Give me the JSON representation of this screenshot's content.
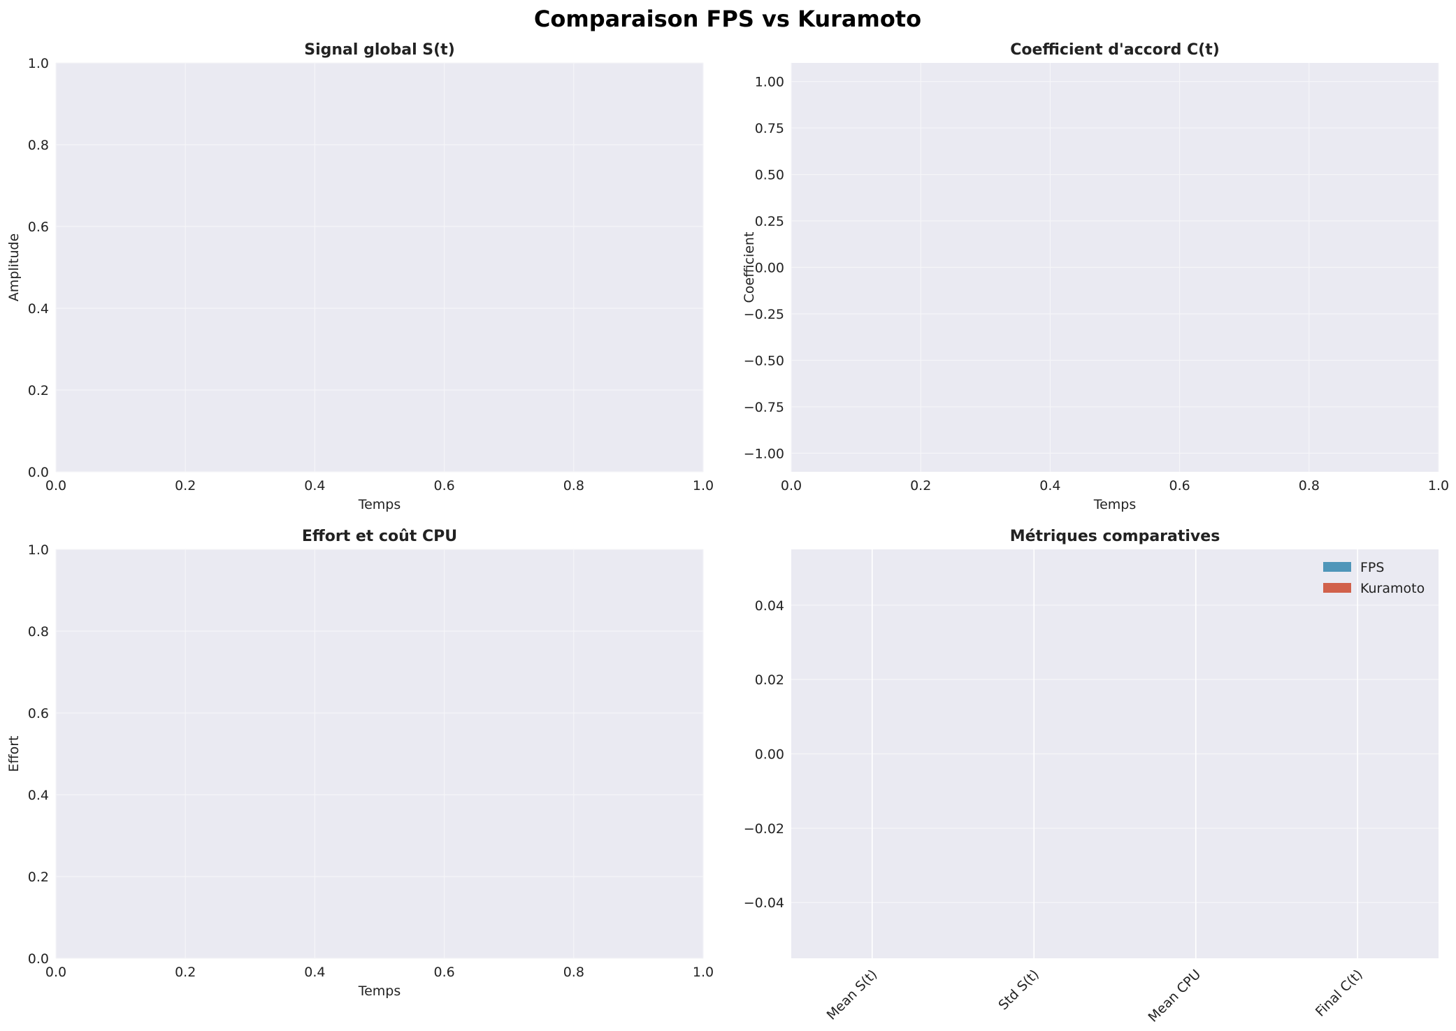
{
  "figure": {
    "title": "Comparaison FPS vs Kuramoto"
  },
  "colors": {
    "panel_bg": "#eaeaf2",
    "grid": "#f5f5f8",
    "grid_white": "#ffffff",
    "fps": "#4f96b9",
    "kuramoto": "#d1614b",
    "text": "#222222"
  },
  "chart_data": [
    {
      "type": "line",
      "title": "Signal global S(t)",
      "xlabel": "Temps",
      "ylabel": "Amplitude",
      "xlim": [
        0,
        1
      ],
      "ylim": [
        0,
        1
      ],
      "xticks": [
        "0.0",
        "0.2",
        "0.4",
        "0.6",
        "0.8",
        "1.0"
      ],
      "yticks": [
        "0.0",
        "0.2",
        "0.4",
        "0.6",
        "0.8",
        "1.0"
      ],
      "series": [],
      "grid": true
    },
    {
      "type": "line",
      "title": "Coefficient d'accord C(t)",
      "xlabel": "Temps",
      "ylabel": "Coefficient",
      "xlim": [
        0,
        1
      ],
      "ylim": [
        -1.1,
        1.1
      ],
      "xticks": [
        "0.0",
        "0.2",
        "0.4",
        "0.6",
        "0.8",
        "1.0"
      ],
      "yticks": [
        "1.00",
        "0.75",
        "0.50",
        "0.25",
        "0.00",
        "−0.25",
        "−0.50",
        "−0.75",
        "−1.00"
      ],
      "series": [],
      "grid": true
    },
    {
      "type": "line",
      "title": "Effort et coût CPU",
      "xlabel": "Temps",
      "ylabel": "Effort",
      "xlim": [
        0,
        1
      ],
      "ylim": [
        0,
        1
      ],
      "xticks": [
        "0.0",
        "0.2",
        "0.4",
        "0.6",
        "0.8",
        "1.0"
      ],
      "yticks": [
        "0.0",
        "0.2",
        "0.4",
        "0.6",
        "0.8",
        "1.0"
      ],
      "series": [],
      "grid": true
    },
    {
      "type": "bar",
      "title": "Métriques comparatives",
      "xlabel": "",
      "ylabel": "",
      "categories": [
        "Mean S(t)",
        "Std S(t)",
        "Mean CPU",
        "Final C(t)"
      ],
      "ylim": [
        -0.055,
        0.055
      ],
      "yticks": [
        "0.04",
        "0.02",
        "0.00",
        "−0.02",
        "−0.04"
      ],
      "series": [
        {
          "name": "FPS",
          "values": [
            0,
            0,
            0,
            0
          ]
        },
        {
          "name": "Kuramoto",
          "values": [
            0,
            0,
            0,
            0
          ]
        }
      ],
      "legend": "top-right",
      "grid": true
    }
  ]
}
